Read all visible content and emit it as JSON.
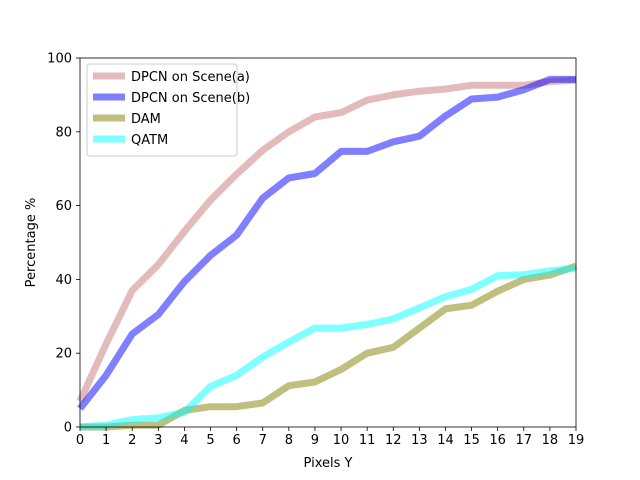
{
  "chart_data": {
    "type": "line",
    "title": "",
    "xlabel": "Pixels Y",
    "ylabel": "Percentage %",
    "xlim": [
      0,
      19
    ],
    "ylim": [
      0,
      100
    ],
    "xticks": [
      0,
      1,
      2,
      3,
      4,
      5,
      6,
      7,
      8,
      9,
      10,
      11,
      12,
      13,
      14,
      15,
      16,
      17,
      18,
      19
    ],
    "yticks": [
      0,
      20,
      40,
      60,
      80,
      100
    ],
    "grid": false,
    "legend_position": "upper-left",
    "x": [
      0,
      1,
      2,
      3,
      4,
      5,
      6,
      7,
      8,
      9,
      10,
      11,
      12,
      13,
      14,
      15,
      16,
      17,
      18,
      19
    ],
    "series": [
      {
        "name": "DPCN on Scene(a)",
        "color": "#c87878",
        "values": [
          7,
          22.5,
          37,
          44,
          53,
          61.5,
          68.5,
          75,
          80,
          84,
          85.2,
          88.6,
          90,
          91,
          91.6,
          92.6,
          92.6,
          92.6,
          93.6,
          94
        ]
      },
      {
        "name": "DPCN on Scene(b)",
        "color": "#0000ff",
        "values": [
          5,
          14,
          25.2,
          30.5,
          39.4,
          46.5,
          52,
          62,
          67.5,
          68.7,
          74.7,
          74.7,
          77.3,
          78.8,
          84.3,
          88.9,
          89.4,
          91.4,
          94.2,
          94.2
        ]
      },
      {
        "name": "DAM",
        "color": "#808000",
        "values": [
          0,
          0,
          0.5,
          0.5,
          4.5,
          5.5,
          5.5,
          6.5,
          11.2,
          12.2,
          15.6,
          20,
          21.6,
          26.8,
          32,
          33,
          36.8,
          40,
          41.2,
          43.6
        ]
      },
      {
        "name": "QATM",
        "color": "#00ffff",
        "values": [
          0,
          0.5,
          2,
          2.5,
          4,
          11,
          14,
          19,
          23,
          26.8,
          26.8,
          27.8,
          29.3,
          32.3,
          35.3,
          37.3,
          41,
          41.3,
          42.3,
          43
        ]
      }
    ]
  }
}
